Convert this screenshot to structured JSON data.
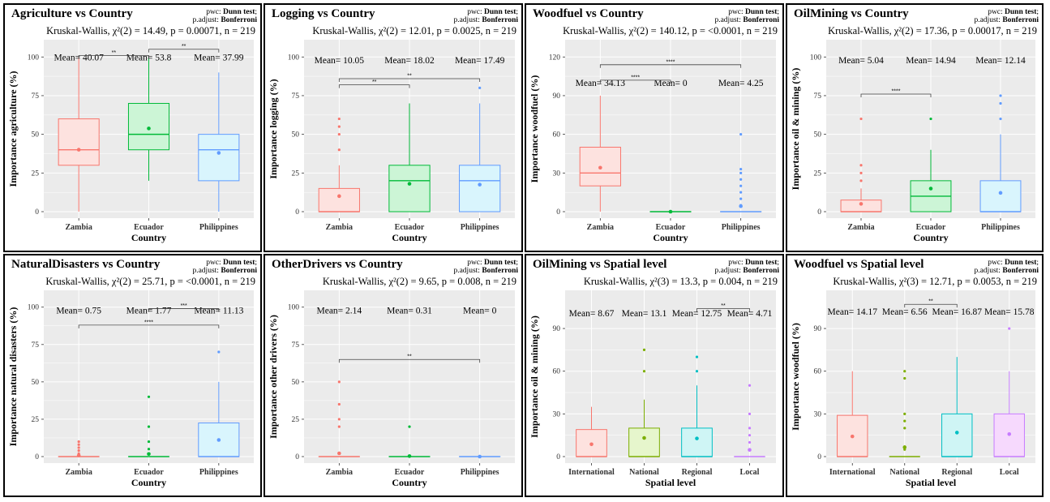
{
  "footer": {
    "pwc_prefix": "pwc: ",
    "pwc_method": "Dunn test",
    "adjust_prefix": "p.adjust: ",
    "adjust_method": "Bonferroni",
    "mean_prefix": "Mean= "
  },
  "colors": {
    "panel_bg": "#ebebeb",
    "grid": "#ffffff",
    "series": [
      "#f8766d",
      "#00ba38",
      "#619cff"
    ],
    "series_fill": [
      "#fde2df",
      "#ccf5d6",
      "#d9f5fd"
    ],
    "series4": [
      "#f8766d",
      "#7cae00",
      "#00bfc4",
      "#c77cff"
    ],
    "series4_fill": [
      "#fde2df",
      "#e6f6cc",
      "#cff5f5",
      "#f6d9fd"
    ]
  },
  "chart_data": [
    {
      "type": "box",
      "title": "Agriculture vs Country",
      "kw": "Kruskal-Wallis, χ²(2) = 14.49, p = 0.00071, n = 219",
      "xlabel": "Country",
      "ylabel": "Importance agriculture (%)",
      "ylim": [
        0,
        100
      ],
      "yticks": [
        0,
        25,
        50,
        75,
        100
      ],
      "categories": [
        "Zambia",
        "Ecuador",
        "Philippines"
      ],
      "boxes": [
        {
          "q1": 30,
          "median": 40,
          "q3": 60,
          "lower": 0,
          "upper": 100,
          "mean": 40.07,
          "outliers": []
        },
        {
          "q1": 40,
          "median": 50,
          "q3": 70,
          "lower": 20,
          "upper": 100,
          "mean": 53.8,
          "outliers": []
        },
        {
          "q1": 20,
          "median": 40,
          "q3": 50,
          "lower": 0,
          "upper": 90,
          "mean": 37.99,
          "outliers": []
        }
      ],
      "means": [
        "40.07",
        "53.8",
        "37.99"
      ],
      "mean_y": 100,
      "brackets": [
        {
          "from": 1,
          "to": 2,
          "y": 101,
          "label": "**"
        },
        {
          "from": 2,
          "to": 3,
          "y": 105,
          "label": "**"
        }
      ]
    },
    {
      "type": "box",
      "title": "Logging vs Country",
      "kw": "Kruskal-Wallis, χ²(2) = 12.01, p = 0.0025, n = 219",
      "xlabel": "Country",
      "ylabel": "Importance logging (%)",
      "ylim": [
        0,
        100
      ],
      "yticks": [
        0,
        25,
        50,
        75,
        100
      ],
      "categories": [
        "Zambia",
        "Ecuador",
        "Philippines"
      ],
      "boxes": [
        {
          "q1": 0,
          "median": 0,
          "q3": 15,
          "lower": 0,
          "upper": 30,
          "mean": 10.05,
          "outliers": [
            40,
            50,
            55,
            60
          ]
        },
        {
          "q1": 0,
          "median": 20,
          "q3": 30,
          "lower": 0,
          "upper": 70,
          "mean": 18.02,
          "outliers": []
        },
        {
          "q1": 0,
          "median": 20,
          "q3": 30,
          "lower": 0,
          "upper": 70,
          "mean": 17.49,
          "outliers": [
            80
          ]
        }
      ],
      "means": [
        "10.05",
        "18.02",
        "17.49"
      ],
      "mean_y": 98,
      "brackets": [
        {
          "from": 1,
          "to": 2,
          "y": 82,
          "label": "**"
        },
        {
          "from": 1,
          "to": 3,
          "y": 86,
          "label": "**"
        }
      ]
    },
    {
      "type": "box",
      "title": "Woodfuel vs Country",
      "kw": "Kruskal-Wallis, χ²(2) = 140.12, p = <0.0001, n = 219",
      "xlabel": "Country",
      "ylabel": "Importance woodfuel (%)",
      "ylim": [
        0,
        120
      ],
      "yticks": [
        0,
        30,
        60,
        90,
        120
      ],
      "categories": [
        "Zambia",
        "Ecuador",
        "Philippines"
      ],
      "boxes": [
        {
          "q1": 20,
          "median": 30,
          "q3": 50,
          "lower": 0,
          "upper": 90,
          "mean": 34.13,
          "outliers": []
        },
        {
          "q1": 0,
          "median": 0,
          "q3": 0,
          "lower": 0,
          "upper": 0,
          "mean": 0,
          "outliers": []
        },
        {
          "q1": 0,
          "median": 0,
          "q3": 0,
          "lower": 0,
          "upper": 0,
          "mean": 4.25,
          "outliers": [
            5,
            10,
            15,
            20,
            25,
            30,
            33,
            60
          ]
        }
      ],
      "means": [
        "34.13",
        "0",
        "4.25"
      ],
      "mean_y": 100,
      "brackets": [
        {
          "from": 1,
          "to": 2,
          "y": 102,
          "label": "****"
        },
        {
          "from": 1,
          "to": 3,
          "y": 114,
          "label": "****"
        }
      ]
    },
    {
      "type": "box",
      "title": "OilMining vs Country",
      "kw": "Kruskal-Wallis, χ²(2) = 17.36, p = 0.00017, n = 219",
      "xlabel": "Country",
      "ylabel": "Importance oil & mining (%)",
      "ylim": [
        0,
        100
      ],
      "yticks": [
        0,
        25,
        50,
        75,
        100
      ],
      "categories": [
        "Zambia",
        "Ecuador",
        "Philippines"
      ],
      "boxes": [
        {
          "q1": 0,
          "median": 0,
          "q3": 7.5,
          "lower": 0,
          "upper": 15,
          "mean": 5.04,
          "outliers": [
            20,
            25,
            30,
            60
          ]
        },
        {
          "q1": 0,
          "median": 10,
          "q3": 20,
          "lower": 0,
          "upper": 40,
          "mean": 14.94,
          "outliers": [
            60
          ]
        },
        {
          "q1": 0,
          "median": 0,
          "q3": 20,
          "lower": 0,
          "upper": 50,
          "mean": 12.14,
          "outliers": [
            60,
            70,
            75
          ]
        }
      ],
      "means": [
        "5.04",
        "14.94",
        "12.14"
      ],
      "mean_y": 98,
      "brackets": [
        {
          "from": 1,
          "to": 2,
          "y": 76,
          "label": "****"
        }
      ]
    },
    {
      "type": "box",
      "title": "NaturalDisasters vs Country",
      "kw": "Kruskal-Wallis, χ²(2) = 25.71, p = <0.0001, n = 219",
      "xlabel": "Country",
      "ylabel": "Importance natural disasters (%)",
      "ylim": [
        0,
        100
      ],
      "yticks": [
        0,
        25,
        50,
        75,
        100
      ],
      "categories": [
        "Zambia",
        "Ecuador",
        "Philippines"
      ],
      "boxes": [
        {
          "q1": 0,
          "median": 0,
          "q3": 0,
          "lower": 0,
          "upper": 0,
          "mean": 0.75,
          "outliers": [
            2,
            4,
            6,
            8,
            10
          ]
        },
        {
          "q1": 0,
          "median": 0,
          "q3": 0,
          "lower": 0,
          "upper": 0,
          "mean": 1.77,
          "outliers": [
            2,
            5,
            10,
            20,
            40
          ]
        },
        {
          "q1": 0,
          "median": 0,
          "q3": 22.5,
          "lower": 0,
          "upper": 50,
          "mean": 11.13,
          "outliers": [
            70
          ]
        }
      ],
      "means": [
        "0.75",
        "1.77",
        "11.13"
      ],
      "mean_y": 98,
      "brackets": [
        {
          "from": 2,
          "to": 3,
          "y": 99,
          "label": "***"
        },
        {
          "from": 1,
          "to": 3,
          "y": 88,
          "label": "****"
        }
      ]
    },
    {
      "type": "box",
      "title": "OtherDrivers vs Country",
      "kw": "Kruskal-Wallis, χ²(2) = 9.65, p = 0.008, n = 219",
      "xlabel": "Country",
      "ylabel": "Importance other drivers (%)",
      "ylim": [
        0,
        100
      ],
      "yticks": [
        0,
        25,
        50,
        75,
        100
      ],
      "categories": [
        "Zambia",
        "Ecuador",
        "Philippines"
      ],
      "boxes": [
        {
          "q1": 0,
          "median": 0,
          "q3": 0,
          "lower": 0,
          "upper": 0,
          "mean": 2.14,
          "outliers": [
            20,
            25,
            35,
            50
          ]
        },
        {
          "q1": 0,
          "median": 0,
          "q3": 0,
          "lower": 0,
          "upper": 0,
          "mean": 0.31,
          "outliers": [
            20
          ]
        },
        {
          "q1": 0,
          "median": 0,
          "q3": 0,
          "lower": 0,
          "upper": 0,
          "mean": 0,
          "outliers": []
        }
      ],
      "means": [
        "2.14",
        "0.31",
        "0"
      ],
      "mean_y": 98,
      "brackets": [
        {
          "from": 1,
          "to": 3,
          "y": 65,
          "label": "**"
        }
      ]
    },
    {
      "type": "box",
      "title": "OilMining vs Spatial level",
      "kw": "Kruskal-Wallis, χ²(3) = 13.3, p = 0.004, n = 219",
      "xlabel": "Spatial level",
      "ylabel": "Importance oil & mining (%)",
      "ylim": [
        0,
        105
      ],
      "yticks": [
        0,
        30,
        60,
        90
      ],
      "categories": [
        "International",
        "National",
        "Regional",
        "Local"
      ],
      "boxes": [
        {
          "q1": 0,
          "median": 0,
          "q3": 19,
          "lower": 0,
          "upper": 35,
          "mean": 8.67,
          "outliers": []
        },
        {
          "q1": 0,
          "median": 0,
          "q3": 20,
          "lower": 0,
          "upper": 40,
          "mean": 13.1,
          "outliers": [
            60,
            75
          ]
        },
        {
          "q1": 0,
          "median": 0,
          "q3": 20,
          "lower": 0,
          "upper": 50,
          "mean": 12.75,
          "outliers": [
            60,
            70
          ]
        },
        {
          "q1": 0,
          "median": 0,
          "q3": 0,
          "lower": 0,
          "upper": 0,
          "mean": 4.71,
          "outliers": [
            5,
            10,
            15,
            20,
            30,
            50
          ]
        }
      ],
      "means": [
        "8.67",
        "13.1",
        "12.75",
        "4.71"
      ],
      "mean_y": 101,
      "brackets": [
        {
          "from": 3,
          "to": 4,
          "y": 104,
          "label": "**"
        }
      ]
    },
    {
      "type": "box",
      "title": "Woodfuel vs Spatial level",
      "kw": "Kruskal-Wallis, χ²(3) = 12.71, p = 0.0053, n = 219",
      "xlabel": "Spatial level",
      "ylabel": "Importance woodfuel (%)",
      "ylim": [
        0,
        105
      ],
      "yticks": [
        0,
        30,
        60,
        90
      ],
      "categories": [
        "International",
        "National",
        "Regional",
        "Local"
      ],
      "boxes": [
        {
          "q1": 0,
          "median": 0,
          "q3": 29,
          "lower": 0,
          "upper": 60,
          "mean": 14.17,
          "outliers": []
        },
        {
          "q1": 0,
          "median": 0,
          "q3": 0,
          "lower": 0,
          "upper": 0,
          "mean": 6.56,
          "outliers": [
            5,
            7,
            20,
            25,
            30,
            55,
            60
          ]
        },
        {
          "q1": 0,
          "median": 0,
          "q3": 30,
          "lower": 0,
          "upper": 70,
          "mean": 16.87,
          "outliers": []
        },
        {
          "q1": 0,
          "median": 0,
          "q3": 30,
          "lower": 0,
          "upper": 60,
          "mean": 15.78,
          "outliers": [
            90
          ]
        }
      ],
      "means": [
        "14.17",
        "6.56",
        "16.87",
        "15.78"
      ],
      "mean_y": 102,
      "brackets": [
        {
          "from": 2,
          "to": 3,
          "y": 107,
          "label": "**"
        }
      ]
    }
  ]
}
